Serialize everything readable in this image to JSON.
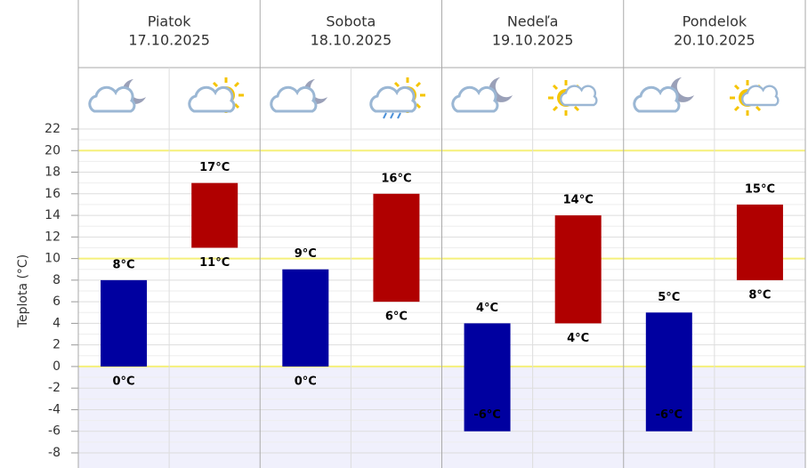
{
  "chart_data": {
    "type": "range-bar",
    "y_label": "Teplota (°C)",
    "categories": [
      "Piatok",
      "Sobota",
      "Nedeľa",
      "Pondelok"
    ],
    "dates": [
      "17.10.2025",
      "18.10.2025",
      "19.10.2025",
      "20.10.2025"
    ],
    "series": [
      {
        "color": "#0000a0",
        "values": [
          [
            0,
            8
          ],
          [
            0,
            9
          ],
          [
            -6,
            4
          ],
          [
            -6,
            5
          ]
        ],
        "value_labels": [
          [
            "0°C",
            "8°C"
          ],
          [
            "0°C",
            "9°C"
          ],
          [
            "-6°C",
            "4°C"
          ],
          [
            "-6°C",
            "5°C"
          ]
        ]
      },
      {
        "color": "#b00000",
        "values": [
          [
            11,
            17
          ],
          [
            6,
            16
          ],
          [
            4,
            14
          ],
          [
            8,
            15
          ]
        ],
        "value_labels": [
          [
            "11°C",
            "17°C"
          ],
          [
            "6°C",
            "16°C"
          ],
          [
            "4°C",
            "14°C"
          ],
          [
            "8°C",
            "15°C"
          ]
        ]
      }
    ],
    "ylim": [
      -8,
      22
    ],
    "yticks": [
      -8,
      -6,
      -4,
      -2,
      0,
      2,
      4,
      6,
      8,
      10,
      12,
      14,
      16,
      18,
      20,
      22
    ],
    "highlight_lines": [
      0,
      10,
      20
    ],
    "highlight_color": "#f5f07a",
    "below_zero_fill": "#f0f0fc",
    "grid": true
  }
}
